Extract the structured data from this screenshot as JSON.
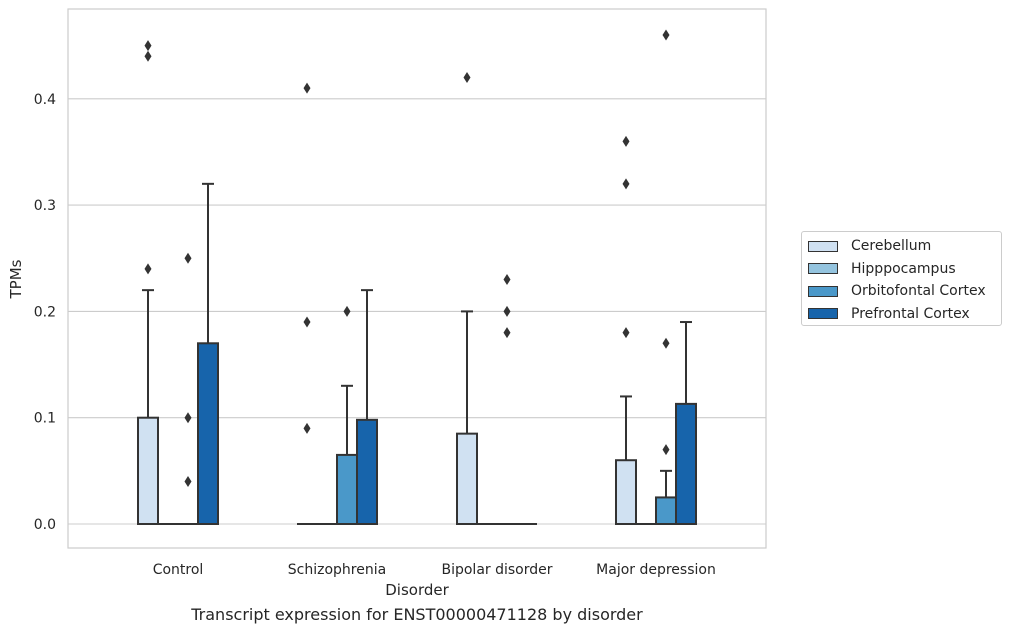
{
  "chart_data": {
    "type": "box",
    "xlabel": "Disorder",
    "ylabel": "TPMs",
    "caption": "Transcript expression for ENST00000471128 by disorder",
    "ylim": [
      -0.023,
      0.483
    ],
    "yticks": [
      "0.0",
      "0.1",
      "0.2",
      "0.3",
      "0.4"
    ],
    "categories": [
      "Control",
      "Schizophrenia",
      "Bipolar disorder",
      "Major depression"
    ],
    "grid": true,
    "legend_position": "right",
    "series": [
      {
        "name": "Cerebellum",
        "color": "#d0e1f2",
        "boxes": [
          {
            "q1": 0,
            "median": 0,
            "q3": 0.1,
            "whisker_low": 0,
            "whisker_high": 0.22,
            "outliers": [
              0.45,
              0.44,
              0.24
            ]
          },
          {
            "q1": 0,
            "median": 0,
            "q3": 0,
            "whisker_low": 0,
            "whisker_high": 0,
            "outliers": [
              0.41,
              0.19,
              0.09
            ]
          },
          {
            "q1": 0,
            "median": 0,
            "q3": 0.085,
            "whisker_low": 0,
            "whisker_high": 0.2,
            "outliers": [
              0.42
            ]
          },
          {
            "q1": 0,
            "median": 0,
            "q3": 0.06,
            "whisker_low": 0,
            "whisker_high": 0.12,
            "outliers": [
              0.36,
              0.32,
              0.18
            ]
          }
        ]
      },
      {
        "name": "Hipppocampus",
        "color": "#94c4df",
        "boxes": [
          {
            "q1": 0,
            "median": 0,
            "q3": 0,
            "whisker_low": 0,
            "whisker_high": 0,
            "outliers": []
          },
          {
            "q1": 0,
            "median": 0,
            "q3": 0,
            "whisker_low": 0,
            "whisker_high": 0,
            "outliers": []
          },
          {
            "q1": 0,
            "median": 0,
            "q3": 0,
            "whisker_low": 0,
            "whisker_high": 0,
            "outliers": []
          },
          {
            "q1": 0,
            "median": 0,
            "q3": 0,
            "whisker_low": 0,
            "whisker_high": 0,
            "outliers": []
          }
        ]
      },
      {
        "name": "Orbitofontal Cortex",
        "color": "#4a98c9",
        "boxes": [
          {
            "q1": 0,
            "median": 0,
            "q3": 0,
            "whisker_low": 0,
            "whisker_high": 0,
            "outliers": [
              0.25,
              0.1,
              0.04
            ]
          },
          {
            "q1": 0,
            "median": 0,
            "q3": 0.065,
            "whisker_low": 0,
            "whisker_high": 0.13,
            "outliers": [
              0.2
            ]
          },
          {
            "q1": 0,
            "median": 0,
            "q3": 0,
            "whisker_low": 0,
            "whisker_high": 0,
            "outliers": [
              0.23,
              0.2,
              0.18
            ]
          },
          {
            "q1": 0,
            "median": 0,
            "q3": 0.025,
            "whisker_low": 0,
            "whisker_high": 0.05,
            "outliers": [
              0.46,
              0.17,
              0.07
            ]
          }
        ]
      },
      {
        "name": "Prefrontal Cortex",
        "color": "#1764ab",
        "boxes": [
          {
            "q1": 0,
            "median": 0,
            "q3": 0.17,
            "whisker_low": 0,
            "whisker_high": 0.32,
            "outliers": []
          },
          {
            "q1": 0,
            "median": 0,
            "q3": 0.098,
            "whisker_low": 0,
            "whisker_high": 0.22,
            "outliers": []
          },
          {
            "q1": 0,
            "median": 0,
            "q3": 0,
            "whisker_low": 0,
            "whisker_high": 0,
            "outliers": []
          },
          {
            "q1": 0,
            "median": 0,
            "q3": 0.113,
            "whisker_low": 0,
            "whisker_high": 0.19,
            "outliers": []
          }
        ]
      }
    ]
  }
}
